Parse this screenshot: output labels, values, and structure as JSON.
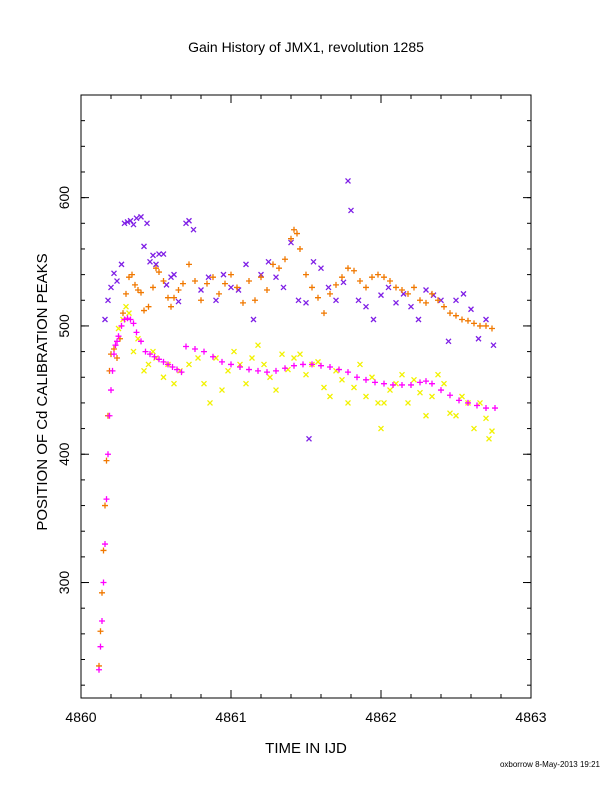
{
  "chart_data": {
    "type": "scatter",
    "title": "Gain History of JMX1, revolution 1285",
    "xlabel": "TIME IN IJD",
    "ylabel": "POSITION OF Cd CALIBRATION PEAKS",
    "xlim": [
      4860,
      4863
    ],
    "ylim": [
      210,
      680
    ],
    "xticks": [
      4860,
      4861,
      4862,
      4863
    ],
    "xtick_labels": [
      "4860",
      "4861",
      "4862",
      "4863"
    ],
    "yticks": [
      300,
      400,
      500,
      600
    ],
    "ytick_labels": [
      "300",
      "400",
      "500",
      "600"
    ],
    "grid": false,
    "legend": "none",
    "footer": "oxborrow  8-May-2013 19:21",
    "colors": {
      "purple": "#7f1fe6",
      "orange": "#f07800",
      "yellow": "#f2f200",
      "magenta": "#ff00ff"
    },
    "series": [
      {
        "color": "#7f1fe6",
        "marker": "x",
        "x": [
          4860.16,
          4860.18,
          4860.2,
          4860.22,
          4860.24,
          4860.27,
          4860.29,
          4860.31,
          4860.33,
          4860.35,
          4860.37,
          4860.4,
          4860.42,
          4860.44,
          4860.46,
          4860.48,
          4860.5,
          4860.52,
          4860.55,
          4860.57,
          4860.6,
          4860.62,
          4860.65,
          4860.7,
          4860.72,
          4860.75,
          4860.8,
          4860.85,
          4860.9,
          4860.95,
          4861.0,
          4861.05,
          4861.1,
          4861.15,
          4861.2,
          4861.25,
          4861.3,
          4861.35,
          4861.4,
          4861.45,
          4861.5,
          4861.52,
          4861.55,
          4861.6,
          4861.65,
          4861.7,
          4861.75,
          4861.78,
          4861.8,
          4861.85,
          4861.9,
          4861.95,
          4862.0,
          4862.05,
          4862.1,
          4862.15,
          4862.2,
          4862.25,
          4862.3,
          4862.35,
          4862.4,
          4862.45,
          4862.5,
          4862.55,
          4862.6,
          4862.65,
          4862.7,
          4862.75
        ],
        "y": [
          505,
          520,
          530,
          541,
          535,
          548,
          580,
          581,
          582,
          579,
          584,
          585,
          562,
          580,
          550,
          555,
          548,
          556,
          556,
          532,
          538,
          540,
          519,
          580,
          582,
          575,
          528,
          538,
          520,
          540,
          530,
          528,
          548,
          505,
          540,
          550,
          538,
          530,
          565,
          520,
          518,
          412,
          550,
          545,
          530,
          520,
          534,
          613,
          590,
          520,
          515,
          505,
          524,
          530,
          518,
          525,
          515,
          505,
          528,
          524,
          520,
          488,
          520,
          525,
          513,
          490,
          505,
          485
        ]
      },
      {
        "color": "#f07800",
        "marker": "+",
        "x": [
          4860.12,
          4860.13,
          4860.14,
          4860.15,
          4860.16,
          4860.17,
          4860.18,
          4860.19,
          4860.2,
          4860.22,
          4860.24,
          4860.26,
          4860.28,
          4860.3,
          4860.32,
          4860.34,
          4860.36,
          4860.38,
          4860.4,
          4860.42,
          4860.45,
          4860.48,
          4860.5,
          4860.52,
          4860.55,
          4860.58,
          4860.6,
          4860.62,
          4860.65,
          4860.68,
          4860.72,
          4860.76,
          4860.8,
          4860.84,
          4860.88,
          4860.92,
          4860.96,
          4861.0,
          4861.04,
          4861.08,
          4861.12,
          4861.16,
          4861.2,
          4861.24,
          4861.28,
          4861.32,
          4861.36,
          4861.4,
          4861.42,
          4861.44,
          4861.46,
          4861.5,
          4861.54,
          4861.58,
          4861.62,
          4861.66,
          4861.7,
          4861.74,
          4861.78,
          4861.82,
          4861.86,
          4861.9,
          4861.94,
          4861.98,
          4862.02,
          4862.06,
          4862.1,
          4862.14,
          4862.18,
          4862.22,
          4862.26,
          4862.3,
          4862.34,
          4862.38,
          4862.42,
          4862.46,
          4862.5,
          4862.54,
          4862.58,
          4862.62,
          4862.66,
          4862.7,
          4862.74
        ],
        "y": [
          235,
          262,
          292,
          325,
          360,
          395,
          430,
          465,
          478,
          482,
          475,
          490,
          510,
          525,
          538,
          540,
          532,
          528,
          526,
          512,
          515,
          530,
          545,
          542,
          535,
          522,
          515,
          522,
          528,
          533,
          548,
          535,
          520,
          533,
          538,
          525,
          533,
          540,
          530,
          518,
          535,
          520,
          538,
          528,
          548,
          545,
          552,
          568,
          575,
          572,
          560,
          540,
          530,
          522,
          510,
          525,
          532,
          538,
          545,
          543,
          535,
          530,
          538,
          540,
          538,
          535,
          530,
          528,
          525,
          530,
          520,
          518,
          525,
          520,
          515,
          510,
          508,
          505,
          504,
          502,
          500,
          500,
          498
        ]
      },
      {
        "color": "#f2f200",
        "marker": "x",
        "x": [
          4860.25,
          4860.28,
          4860.3,
          4860.32,
          4860.35,
          4860.38,
          4860.42,
          4860.45,
          4860.48,
          4860.5,
          4860.55,
          4860.58,
          4860.62,
          4860.66,
          4860.72,
          4860.78,
          4860.82,
          4860.86,
          4860.9,
          4860.94,
          4860.98,
          4861.02,
          4861.06,
          4861.1,
          4861.14,
          4861.18,
          4861.22,
          4861.26,
          4861.3,
          4861.34,
          4861.38,
          4861.42,
          4861.46,
          4861.5,
          4861.54,
          4861.58,
          4861.62,
          4861.66,
          4861.7,
          4861.74,
          4861.78,
          4861.82,
          4861.86,
          4861.9,
          4861.94,
          4861.98,
          4862.0,
          4862.02,
          4862.06,
          4862.1,
          4862.14,
          4862.18,
          4862.22,
          4862.26,
          4862.3,
          4862.34,
          4862.38,
          4862.42,
          4862.46,
          4862.5,
          4862.54,
          4862.58,
          4862.62,
          4862.66,
          4862.7,
          4862.72,
          4862.74
        ],
        "y": [
          498,
          505,
          515,
          510,
          480,
          490,
          465,
          470,
          480,
          475,
          460,
          470,
          455,
          465,
          470,
          475,
          455,
          440,
          475,
          450,
          465,
          480,
          470,
          455,
          475,
          485,
          470,
          460,
          450,
          478,
          466,
          475,
          478,
          462,
          470,
          472,
          452,
          445,
          465,
          458,
          440,
          452,
          470,
          445,
          460,
          440,
          420,
          440,
          450,
          455,
          462,
          440,
          458,
          448,
          430,
          445,
          462,
          455,
          432,
          430,
          445,
          440,
          420,
          440,
          428,
          412,
          418
        ]
      },
      {
        "color": "#ff00ff",
        "marker": "+",
        "x": [
          4860.12,
          4860.13,
          4860.14,
          4860.15,
          4860.16,
          4860.17,
          4860.18,
          4860.19,
          4860.2,
          4860.21,
          4860.22,
          4860.23,
          4860.24,
          4860.25,
          4860.27,
          4860.29,
          4860.31,
          4860.33,
          4860.35,
          4860.37,
          4860.4,
          4860.43,
          4860.46,
          4860.49,
          4860.52,
          4860.55,
          4860.58,
          4860.61,
          4860.64,
          4860.67,
          4860.7,
          4860.76,
          4860.82,
          4860.88,
          4860.94,
          4861.0,
          4861.06,
          4861.12,
          4861.18,
          4861.24,
          4861.3,
          4861.36,
          4861.42,
          4861.48,
          4861.54,
          4861.6,
          4861.66,
          4861.72,
          4861.78,
          4861.84,
          4861.9,
          4861.96,
          4862.02,
          4862.08,
          4862.14,
          4862.2,
          4862.26,
          4862.3,
          4862.34,
          4862.4,
          4862.46,
          4862.52,
          4862.58,
          4862.64,
          4862.7,
          4862.76
        ],
        "y": [
          232,
          250,
          270,
          300,
          330,
          365,
          400,
          430,
          450,
          465,
          478,
          485,
          488,
          492,
          500,
          505,
          506,
          505,
          502,
          495,
          488,
          480,
          478,
          476,
          474,
          472,
          470,
          468,
          466,
          464,
          484,
          482,
          480,
          476,
          472,
          470,
          468,
          466,
          465,
          464,
          465,
          467,
          469,
          470,
          470,
          469,
          468,
          466,
          464,
          460,
          458,
          456,
          455,
          454,
          454,
          454,
          456,
          457,
          455,
          450,
          446,
          442,
          440,
          438,
          436,
          436
        ]
      }
    ]
  }
}
